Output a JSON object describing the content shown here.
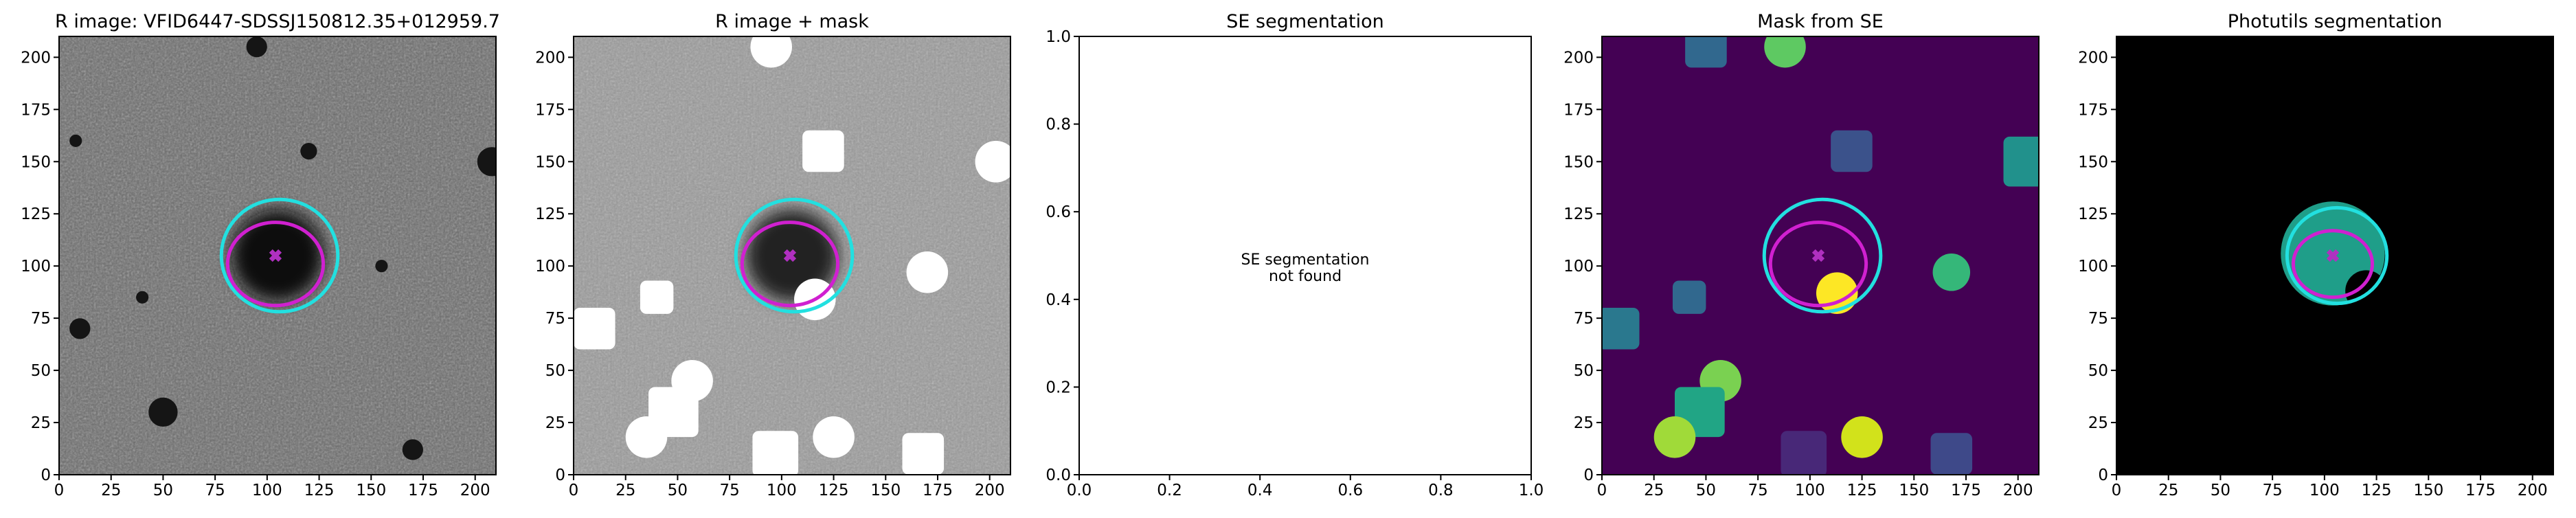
{
  "chart_data": [
    {
      "type": "image",
      "title": "R image: VFID6447-SDSSJ150812.35+012959.7",
      "xlim": [
        0,
        210
      ],
      "ylim": [
        0,
        210
      ],
      "xticks": [
        0,
        25,
        50,
        75,
        100,
        125,
        150,
        175,
        200
      ],
      "yticks": [
        0,
        25,
        50,
        75,
        100,
        125,
        150,
        175,
        200
      ]
    },
    {
      "type": "image",
      "title": "R image + mask",
      "xlim": [
        0,
        210
      ],
      "ylim": [
        0,
        210
      ],
      "xticks": [
        0,
        25,
        50,
        75,
        100,
        125,
        150,
        175,
        200
      ],
      "yticks": [
        0,
        25,
        50,
        75,
        100,
        125,
        150,
        175,
        200
      ]
    },
    {
      "type": "empty",
      "title": "SE segmentation",
      "annotation": [
        "SE segmentation",
        "not found"
      ],
      "xlim": [
        0,
        1
      ],
      "ylim": [
        0,
        1
      ],
      "xticks": [
        {
          "value": 0,
          "label": "0.0"
        },
        {
          "value": 0.2,
          "label": "0.2"
        },
        {
          "value": 0.4,
          "label": "0.4"
        },
        {
          "value": 0.6,
          "label": "0.6"
        },
        {
          "value": 0.8,
          "label": "0.8"
        },
        {
          "value": 1,
          "label": "1.0"
        }
      ],
      "yticks": [
        {
          "value": 0,
          "label": "0.0"
        },
        {
          "value": 0.2,
          "label": "0.2"
        },
        {
          "value": 0.4,
          "label": "0.4"
        },
        {
          "value": 0.6,
          "label": "0.6"
        },
        {
          "value": 0.8,
          "label": "0.8"
        },
        {
          "value": 1,
          "label": "1.0"
        }
      ]
    },
    {
      "type": "image",
      "title": "Mask from SE",
      "xlim": [
        0,
        210
      ],
      "ylim": [
        0,
        210
      ],
      "xticks": [
        0,
        25,
        50,
        75,
        100,
        125,
        150,
        175,
        200
      ],
      "yticks": [
        0,
        25,
        50,
        75,
        100,
        125,
        150,
        175,
        200
      ]
    },
    {
      "type": "image",
      "title": "Photutils segmentation",
      "xlim": [
        0,
        210
      ],
      "ylim": [
        0,
        210
      ],
      "xticks": [
        0,
        25,
        50,
        75,
        100,
        125,
        150,
        175,
        200
      ],
      "yticks": [
        0,
        25,
        50,
        75,
        100,
        125,
        150,
        175,
        200
      ]
    }
  ]
}
